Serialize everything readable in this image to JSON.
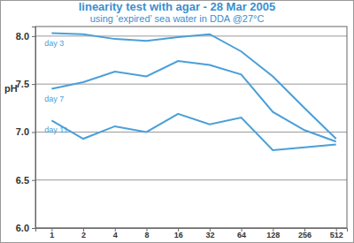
{
  "chart_data": {
    "type": "line",
    "title": "linearity test with agar - 28 Mar 2005",
    "subtitle": "using ‘expired’ sea water in DDA @27°C",
    "y_label": "pH",
    "x": [
      1,
      2,
      4,
      8,
      16,
      32,
      64,
      128,
      256,
      512
    ],
    "series": [
      {
        "name": "day 3",
        "color": "#4a9fd8",
        "values": [
          8.03,
          8.02,
          7.97,
          7.95,
          7.99,
          8.02,
          7.84,
          7.58,
          7.25,
          6.93
        ]
      },
      {
        "name": "day 7",
        "color": "#4a9fd8",
        "values": [
          7.45,
          7.52,
          7.63,
          7.58,
          7.74,
          7.7,
          7.6,
          7.21,
          7.02,
          6.9
        ]
      },
      {
        "name": "day 11",
        "color": "#4a9fd8",
        "values": [
          7.12,
          6.93,
          7.06,
          7.0,
          7.19,
          7.08,
          7.15,
          6.81,
          6.84,
          6.87
        ]
      }
    ],
    "log": "x",
    "xlim": [
      0.7,
      650
    ],
    "xticks": [
      1,
      2,
      4,
      8,
      16,
      32,
      64,
      128,
      256,
      512
    ],
    "ylim": [
      6.0,
      8.1
    ],
    "yticks": [
      {
        "value": 6.0,
        "label": "6.0"
      },
      {
        "value": 6.5,
        "label": "6.5"
      },
      {
        "value": 7.0,
        "label": "7.0"
      },
      {
        "value": 7.5,
        "label": "7.5"
      },
      {
        "value": 8.0,
        "label": "8.0"
      }
    ],
    "grid": true
  }
}
